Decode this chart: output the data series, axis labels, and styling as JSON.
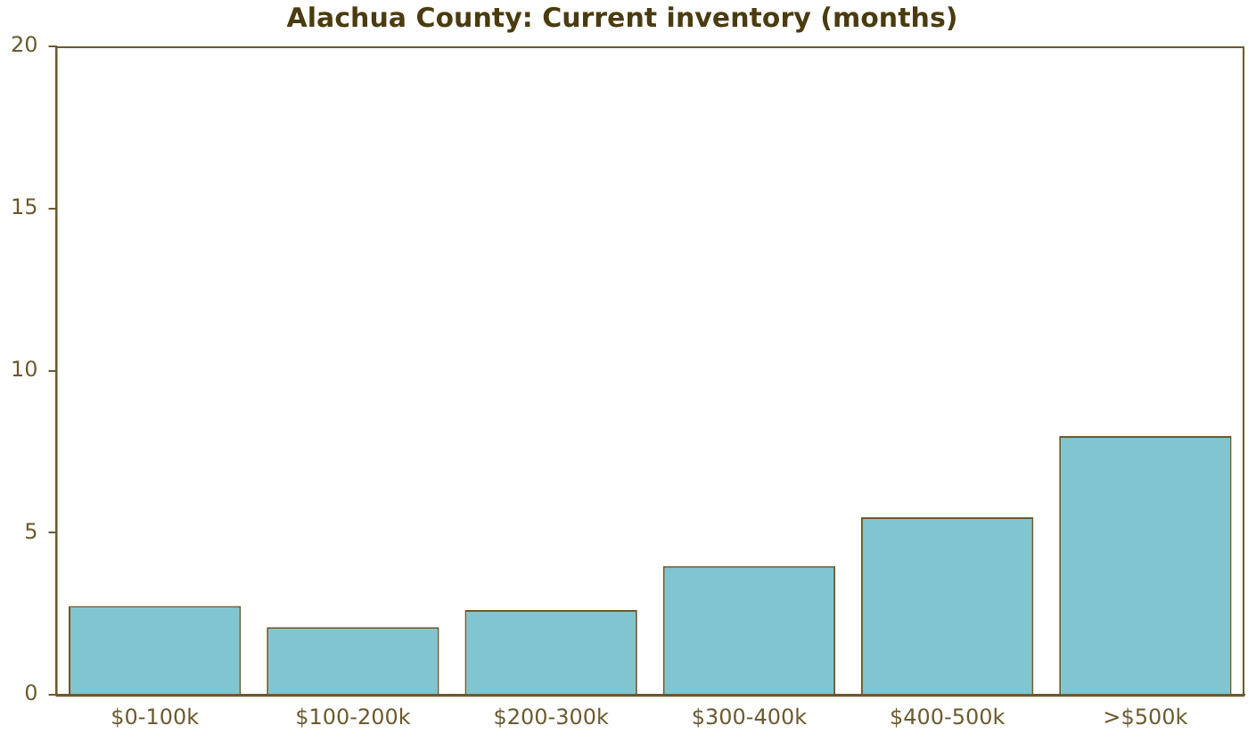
{
  "chart_data": {
    "type": "bar",
    "title": "Alachua County: Current inventory (months)",
    "categories": [
      "$0-100k",
      "$100-200k",
      "$200-300k",
      "$300-400k",
      "$400-500k",
      ">$500k"
    ],
    "series": [
      {
        "color": "#80c5d0",
        "values": [
          2.74,
          2.09,
          2.62,
          3.97,
          5.48,
          7.98
        ]
      }
    ],
    "ylim": [
      0,
      20
    ],
    "yticks": [
      0,
      5,
      10,
      15,
      20
    ],
    "grid": false,
    "legend": false
  }
}
